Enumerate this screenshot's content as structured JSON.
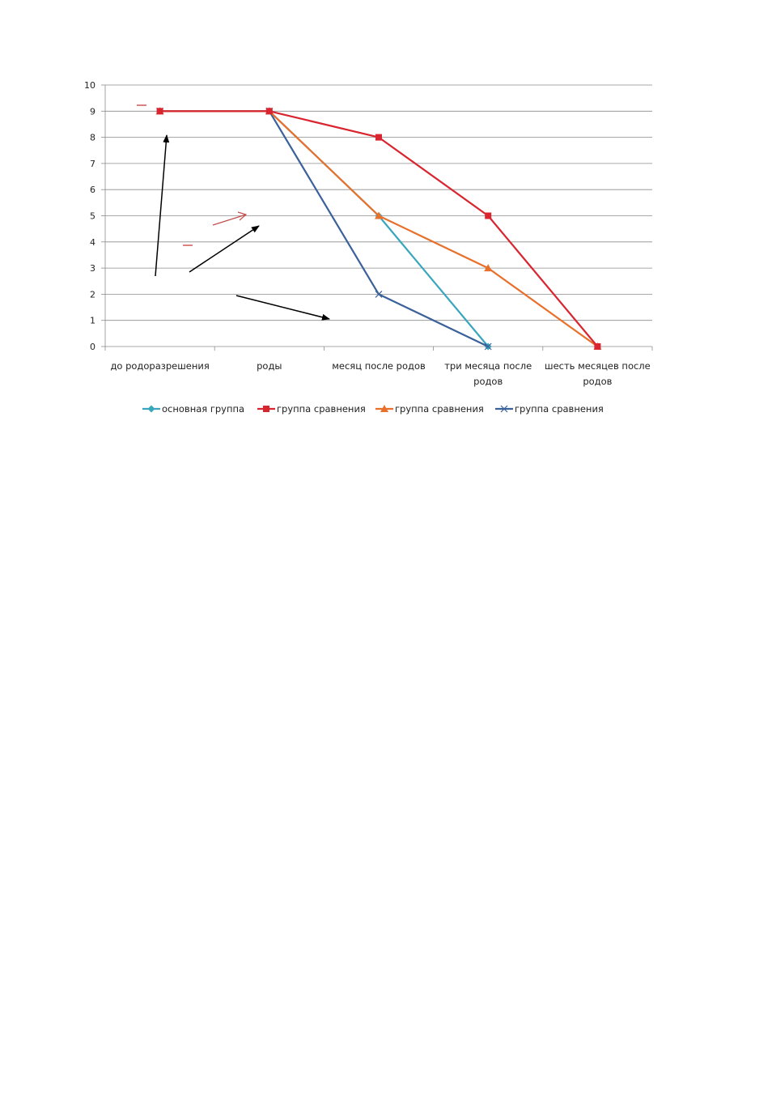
{
  "chart_data": {
    "type": "line",
    "categories": [
      [
        "до родоразрешения"
      ],
      [
        "роды"
      ],
      [
        "месяц после родов"
      ],
      [
        "три месяца после",
        "родов"
      ],
      [
        "шесть месяцев после",
        "родов"
      ]
    ],
    "ylim": [
      0,
      10
    ],
    "yticks": [
      0,
      1,
      2,
      3,
      4,
      5,
      6,
      7,
      8,
      9,
      10
    ],
    "grid": true,
    "legend_position": "bottom",
    "series": [
      {
        "name": "основная группа",
        "color": "#3aa6bd",
        "marker": "diamond",
        "values": [
          9,
          9,
          5,
          0,
          null
        ]
      },
      {
        "name": "группа сравнения",
        "color": "#d9252f",
        "marker": "square",
        "values": [
          9,
          9,
          8,
          5,
          0
        ]
      },
      {
        "name": "группа сравнения",
        "color": "#e8702a",
        "marker": "triangle",
        "values": [
          9,
          9,
          5,
          3,
          0
        ]
      },
      {
        "name": "группа сравнения",
        "color": "#3b619b",
        "marker": "x",
        "values": [
          9,
          9,
          2,
          0,
          null
        ]
      }
    ],
    "xlabel": "",
    "ylabel": ""
  }
}
